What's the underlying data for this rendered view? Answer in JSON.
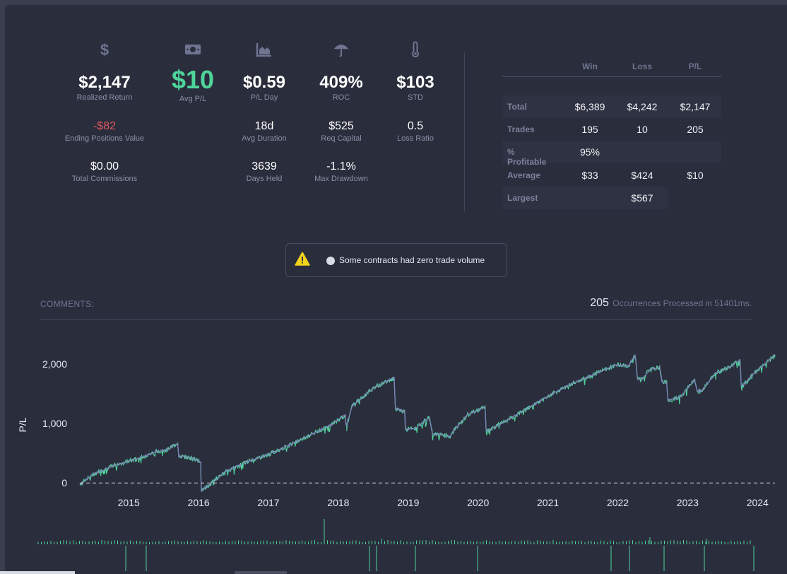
{
  "colors": {
    "panel": "#2a2d3c",
    "accent_green": "#4fd49a",
    "negative_red": "#e0585c",
    "line_blue": "#7d84b8",
    "icon": "#6f7591"
  },
  "stats": {
    "realized_return": {
      "icon": "dollar-icon",
      "value": "$2,147",
      "label": "Realized Return"
    },
    "avg_pl": {
      "icon": "money-icon",
      "value": "$10",
      "label": "Avg P/L"
    },
    "pl_day": {
      "icon": "area-chart-icon",
      "value": "$0.59",
      "label": "P/L Day"
    },
    "roc": {
      "icon": "umbrella-icon",
      "value": "409%",
      "label": "ROC"
    },
    "std": {
      "icon": "thermometer-icon",
      "value": "$103",
      "label": "STD"
    },
    "ending_positions": {
      "value": "-$82",
      "label": "Ending Positions Value"
    },
    "avg_duration": {
      "value": "18d",
      "label": "Avg Duration"
    },
    "req_capital": {
      "value": "$525",
      "label": "Req Capital"
    },
    "loss_ratio": {
      "value": "0.5",
      "label": "Loss Ratio"
    },
    "total_commissions": {
      "value": "$0.00",
      "label": "Total Commissions"
    },
    "days_held": {
      "value": "3639",
      "label": "Days Held"
    },
    "max_drawdown": {
      "value": "-1.1%",
      "label": "Max Drawdown"
    }
  },
  "summary": {
    "headers": [
      "Win",
      "Loss",
      "P/L"
    ],
    "rows": [
      {
        "label": "Total",
        "win": "$6,389",
        "loss": "$4,242",
        "pl": "$2,147"
      },
      {
        "label": "Trades",
        "win": "195",
        "loss": "10",
        "pl": "205"
      },
      {
        "label": "% Profitable",
        "win": "95%",
        "loss": "",
        "pl": ""
      },
      {
        "label": "Average",
        "win": "$33",
        "loss": "$424",
        "pl": "$10"
      },
      {
        "label": "Largest",
        "win": "",
        "loss": "$567",
        "pl": ""
      }
    ]
  },
  "warning": {
    "icon": "warning-icon",
    "text": "Some contracts had zero trade volume"
  },
  "comments_label": "COMMENTS:",
  "occurrences": {
    "count": "205",
    "text": "Occurrences Processed in 51401ms."
  },
  "chart_data": {
    "type": "line",
    "ylabel": "P/L",
    "yticks": [
      0,
      1000,
      2000
    ],
    "ytick_labels": [
      "0",
      "1,000",
      "2,000"
    ],
    "xticks": [
      "2015",
      "2016",
      "2017",
      "2018",
      "2019",
      "2020",
      "2021",
      "2022",
      "2023",
      "2024"
    ],
    "x_range": [
      2014.3,
      2024.25
    ],
    "y_range": [
      -200,
      2300
    ],
    "series": [
      {
        "values": [
          [
            2014.3,
            -20
          ],
          [
            2014.5,
            150
          ],
          [
            2014.8,
            300
          ],
          [
            2015.1,
            400
          ],
          [
            2015.4,
            530
          ],
          [
            2015.55,
            560
          ],
          [
            2015.7,
            670
          ],
          [
            2015.75,
            450
          ],
          [
            2015.9,
            420
          ],
          [
            2016.03,
            350
          ],
          [
            2016.05,
            -120
          ],
          [
            2016.1,
            -80
          ],
          [
            2016.4,
            200
          ],
          [
            2016.7,
            360
          ],
          [
            2017.0,
            480
          ],
          [
            2017.3,
            640
          ],
          [
            2017.6,
            810
          ],
          [
            2017.9,
            980
          ],
          [
            2018.1,
            1150
          ],
          [
            2018.12,
            980
          ],
          [
            2018.2,
            1300
          ],
          [
            2018.5,
            1600
          ],
          [
            2018.8,
            1780
          ],
          [
            2018.85,
            1250
          ],
          [
            2018.95,
            1200
          ],
          [
            2018.98,
            900
          ],
          [
            2019.1,
            920
          ],
          [
            2019.3,
            1100
          ],
          [
            2019.45,
            820
          ],
          [
            2019.6,
            780
          ],
          [
            2019.65,
            880
          ],
          [
            2019.85,
            1150
          ],
          [
            2020.1,
            1280
          ],
          [
            2020.15,
            880
          ],
          [
            2020.4,
            1050
          ],
          [
            2020.7,
            1250
          ],
          [
            2021.0,
            1460
          ],
          [
            2021.3,
            1650
          ],
          [
            2021.6,
            1800
          ],
          [
            2021.9,
            1950
          ],
          [
            2022.0,
            1990
          ],
          [
            2022.15,
            1970
          ],
          [
            2022.25,
            2150
          ],
          [
            2022.35,
            1750
          ],
          [
            2022.45,
            1900
          ],
          [
            2022.6,
            1950
          ],
          [
            2022.7,
            1700
          ],
          [
            2022.75,
            1400
          ],
          [
            2022.9,
            1450
          ],
          [
            2023.1,
            1750
          ],
          [
            2023.2,
            1550
          ],
          [
            2023.4,
            1850
          ],
          [
            2023.6,
            1950
          ],
          [
            2023.75,
            2080
          ],
          [
            2023.8,
            1650
          ],
          [
            2023.95,
            1850
          ],
          [
            2024.1,
            2000
          ],
          [
            2024.25,
            2150
          ]
        ]
      }
    ]
  }
}
